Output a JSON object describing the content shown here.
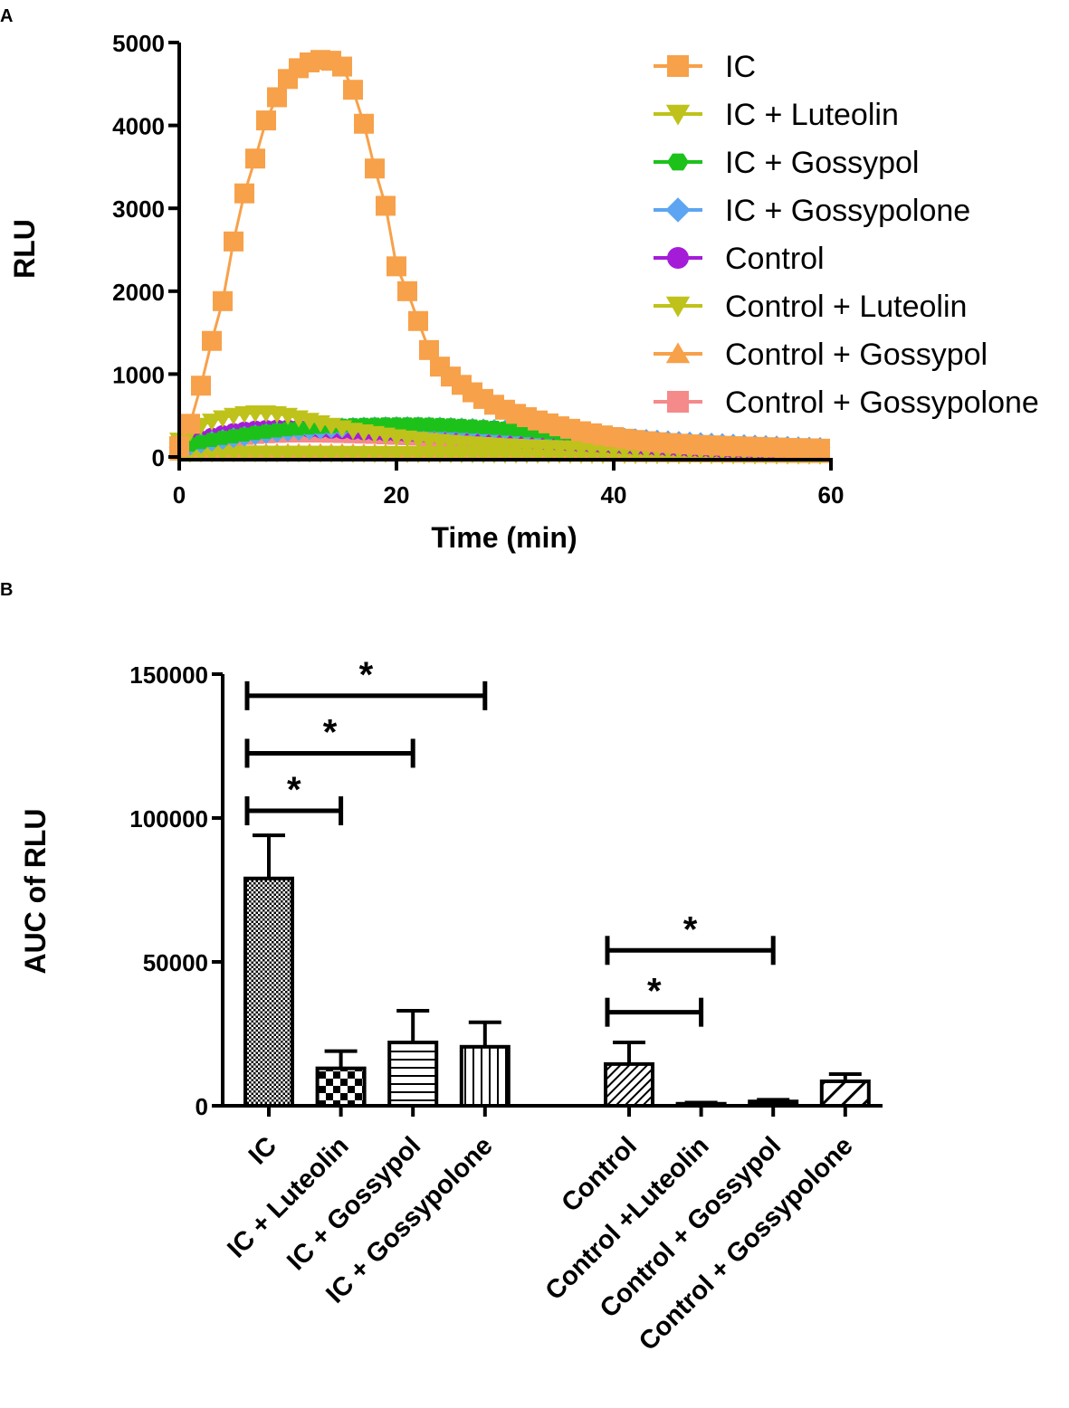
{
  "panel_a_label": "A",
  "panel_b_label": "B",
  "colors": {
    "orange": "#F7A14A",
    "olive": "#BFC21A",
    "green": "#1CC21A",
    "blue": "#5DA5F2",
    "purple": "#A51CD8",
    "pink": "#F48A8A",
    "axis": "#000000"
  },
  "chart_data": [
    {
      "type": "line",
      "panel": "A",
      "title": "",
      "xlabel": "Time (min)",
      "ylabel": "RLU",
      "xlim": [
        0,
        60
      ],
      "ylim": [
        0,
        5000
      ],
      "xticks": [
        "0",
        "20",
        "40",
        "60"
      ],
      "yticks": [
        "0",
        "1000",
        "2000",
        "3000",
        "4000",
        "5000"
      ],
      "legend_position": "top-right",
      "x": [
        0,
        1,
        2,
        3,
        4,
        5,
        6,
        7,
        8,
        9,
        10,
        11,
        12,
        13,
        14,
        15,
        16,
        17,
        18,
        19,
        20,
        21,
        22,
        23,
        24,
        25,
        26,
        27,
        28,
        29,
        30,
        31,
        32,
        33,
        34,
        35,
        36,
        37,
        38,
        39,
        40,
        41,
        42,
        43,
        44,
        45,
        46,
        47,
        48,
        49,
        50,
        51,
        52,
        53,
        54,
        55,
        56,
        57,
        58,
        59
      ],
      "series": [
        {
          "name": "IC",
          "marker": "square",
          "color": "#F7A14A",
          "values": [
            130,
            400,
            860,
            1400,
            1880,
            2600,
            3180,
            3600,
            4060,
            4340,
            4560,
            4690,
            4760,
            4790,
            4780,
            4710,
            4430,
            4020,
            3480,
            3030,
            2300,
            2000,
            1640,
            1290,
            1090,
            970,
            870,
            780,
            700,
            630,
            570,
            520,
            480,
            440,
            405,
            370,
            340,
            310,
            285,
            260,
            240,
            220,
            205,
            190,
            178,
            168,
            160,
            152,
            145,
            140,
            135,
            130,
            126,
            122,
            118,
            114,
            110,
            107,
            104,
            100
          ]
        },
        {
          "name": "IC + Luteolin",
          "marker": "triangle-down",
          "color": "#BFC21A",
          "values": [
            200,
            300,
            380,
            430,
            470,
            500,
            520,
            530,
            530,
            520,
            500,
            470,
            440,
            410,
            380,
            350,
            320,
            300,
            280,
            260,
            240,
            225,
            210,
            198,
            186,
            175,
            165,
            156,
            148,
            140,
            133,
            127,
            122,
            117,
            112,
            108,
            104,
            100,
            97,
            94,
            91,
            88,
            86,
            84,
            82,
            80,
            78,
            76,
            74,
            72,
            70,
            68,
            66,
            64,
            62,
            60,
            58,
            56,
            55,
            54
          ]
        },
        {
          "name": "IC + Gossypol",
          "marker": "hexagon",
          "color": "#1CC21A",
          "values": [
            120,
            150,
            180,
            205,
            230,
            250,
            270,
            290,
            305,
            320,
            335,
            345,
            355,
            365,
            372,
            378,
            383,
            387,
            390,
            392,
            393,
            393,
            392,
            390,
            386,
            381,
            375,
            368,
            360,
            351,
            342,
            332,
            322,
            311,
            300,
            289,
            278,
            267,
            256,
            245,
            235,
            225,
            215,
            206,
            197,
            188,
            180,
            172,
            165,
            158,
            151,
            145,
            139,
            134,
            129,
            124,
            120,
            116,
            112,
            108
          ]
        },
        {
          "name": "IC + Gossypolone",
          "marker": "diamond",
          "color": "#5DA5F2",
          "values": [
            110,
            140,
            165,
            190,
            212,
            232,
            250,
            267,
            282,
            296,
            309,
            320,
            330,
            339,
            346,
            352,
            357,
            361,
            364,
            366,
            367,
            367,
            366,
            364,
            361,
            357,
            352,
            346,
            340,
            333,
            326,
            318,
            310,
            301,
            292,
            283,
            274,
            265,
            256,
            247,
            238,
            229,
            221,
            213,
            205,
            197,
            189,
            182,
            175,
            168,
            162,
            156,
            150,
            144,
            139,
            134,
            129,
            124,
            120,
            116
          ]
        },
        {
          "name": "Control",
          "marker": "circle",
          "color": "#A51CD8",
          "values": [
            120,
            170,
            210,
            245,
            275,
            300,
            318,
            330,
            338,
            342,
            343,
            342,
            339,
            335,
            330,
            324,
            318,
            311,
            304,
            297,
            290,
            282,
            275,
            267,
            259,
            251,
            243,
            235,
            227,
            219,
            211,
            203,
            195,
            188,
            181,
            174,
            167,
            160,
            154,
            148,
            142,
            136,
            131,
            126,
            121,
            116,
            112,
            108,
            104,
            100,
            96,
            93,
            90,
            87,
            84,
            81,
            78,
            76,
            74,
            72
          ]
        },
        {
          "name": "Control + Luteolin",
          "marker": "triangle-down",
          "color": "#BFC21A",
          "values": [
            40,
            42,
            43,
            44,
            45,
            45,
            45,
            45,
            44,
            44,
            43,
            43,
            42,
            42,
            41,
            41,
            40,
            40,
            39,
            39,
            38,
            38,
            37,
            37,
            36,
            36,
            35,
            35,
            34,
            34,
            33,
            33,
            32,
            32,
            31,
            31,
            30,
            30,
            29,
            29,
            28,
            28,
            27,
            27,
            26,
            26,
            25,
            25,
            24,
            24,
            23,
            23,
            22,
            22,
            21,
            21,
            20,
            20,
            19,
            19
          ]
        },
        {
          "name": "Control + Gossypol",
          "marker": "triangle-up",
          "color": "#F7A14A",
          "values": [
            50,
            52,
            54,
            55,
            56,
            57,
            57,
            57,
            57,
            56,
            56,
            55,
            55,
            54,
            53,
            53,
            52,
            51,
            50,
            50,
            49,
            48,
            47,
            47,
            46,
            45,
            44,
            44,
            43,
            42,
            41,
            41,
            40,
            39,
            38,
            38,
            37,
            36,
            35,
            35,
            34,
            33,
            32,
            32,
            31,
            30,
            29,
            29,
            28,
            27,
            26,
            26,
            25,
            24,
            23,
            23,
            22,
            21,
            20,
            20
          ]
        },
        {
          "name": "Control + Gossypolone",
          "marker": "square",
          "color": "#F48A8A",
          "values": [
            90,
            130,
            165,
            195,
            220,
            240,
            255,
            267,
            275,
            280,
            283,
            284,
            284,
            283,
            281,
            278,
            275,
            271,
            267,
            262,
            257,
            252,
            246,
            240,
            234,
            228,
            222,
            216,
            210,
            204,
            198,
            192,
            186,
            180,
            174,
            168,
            163,
            158,
            153,
            148,
            143,
            138,
            134,
            130,
            126,
            122,
            118,
            115,
            112,
            109,
            106,
            103,
            100,
            98,
            96,
            94,
            92,
            90,
            88,
            86
          ]
        }
      ]
    },
    {
      "type": "bar",
      "panel": "B",
      "title": "",
      "xlabel": "",
      "ylabel": "AUC of RLU",
      "ylim": [
        0,
        150000
      ],
      "yticks": [
        "0",
        "50000",
        "100000",
        "150000"
      ],
      "categories": [
        "IC",
        "IC + Luteolin",
        "IC + Gossypol",
        "IC + Gossypolone",
        "Control",
        "Control +Luteolin",
        "Control + Gossypol",
        "Control + Gossypolone"
      ],
      "values": [
        79000,
        13000,
        22000,
        20500,
        14500,
        700,
        1500,
        8500
      ],
      "errors": [
        15000,
        6000,
        11000,
        8500,
        7500,
        400,
        600,
        2500
      ],
      "patterns": [
        "dots",
        "checker",
        "hlines",
        "vlines",
        "diag",
        "solid",
        "solid",
        "diag-wide"
      ],
      "significance": [
        {
          "from": 0,
          "to": 3,
          "y": 142500,
          "label": "*"
        },
        {
          "from": 0,
          "to": 2,
          "y": 122500,
          "label": "*"
        },
        {
          "from": 0,
          "to": 1,
          "y": 102500,
          "label": "*"
        },
        {
          "from": 4,
          "to": 6,
          "y": 54000,
          "label": "*"
        },
        {
          "from": 4,
          "to": 5,
          "y": 32500,
          "label": "*"
        }
      ]
    }
  ]
}
